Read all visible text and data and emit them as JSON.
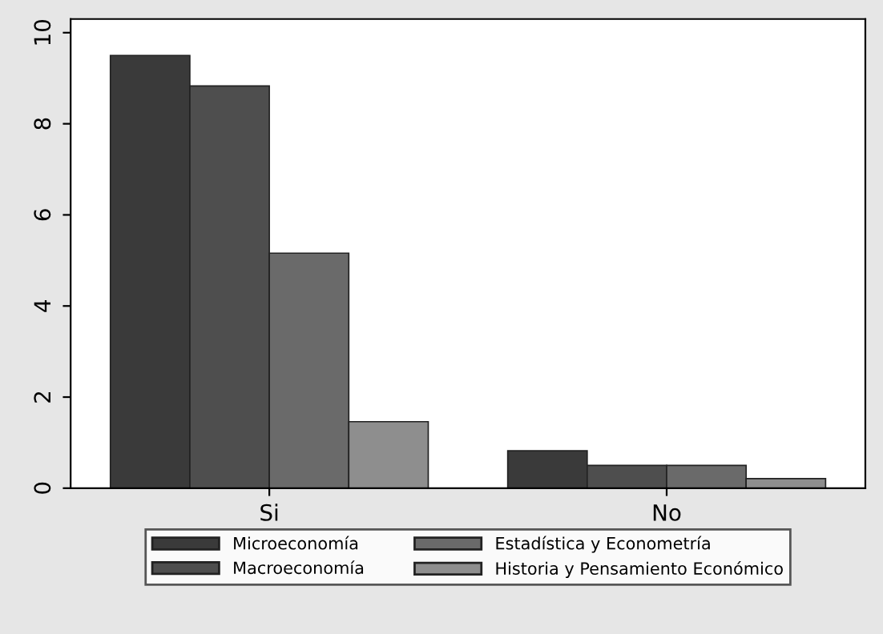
{
  "chart_data": {
    "type": "bar",
    "categories": [
      "Si",
      "No"
    ],
    "series": [
      {
        "name": "Microeconomía",
        "color": "#3a3a3a",
        "values": [
          9.5,
          0.82
        ]
      },
      {
        "name": "Macroeconomía",
        "color": "#4e4e4e",
        "values": [
          8.83,
          0.5
        ]
      },
      {
        "name": "Estadística y Econometría",
        "color": "#6a6a6a",
        "values": [
          5.16,
          0.5
        ]
      },
      {
        "name": "Historia y Pensamiento Económico",
        "color": "#8e8e8e",
        "values": [
          1.46,
          0.21
        ]
      }
    ],
    "ylim": [
      0,
      10.3
    ],
    "yticks": [
      0,
      2,
      4,
      6,
      8,
      10
    ],
    "grid": false,
    "legend": "bottom"
  }
}
